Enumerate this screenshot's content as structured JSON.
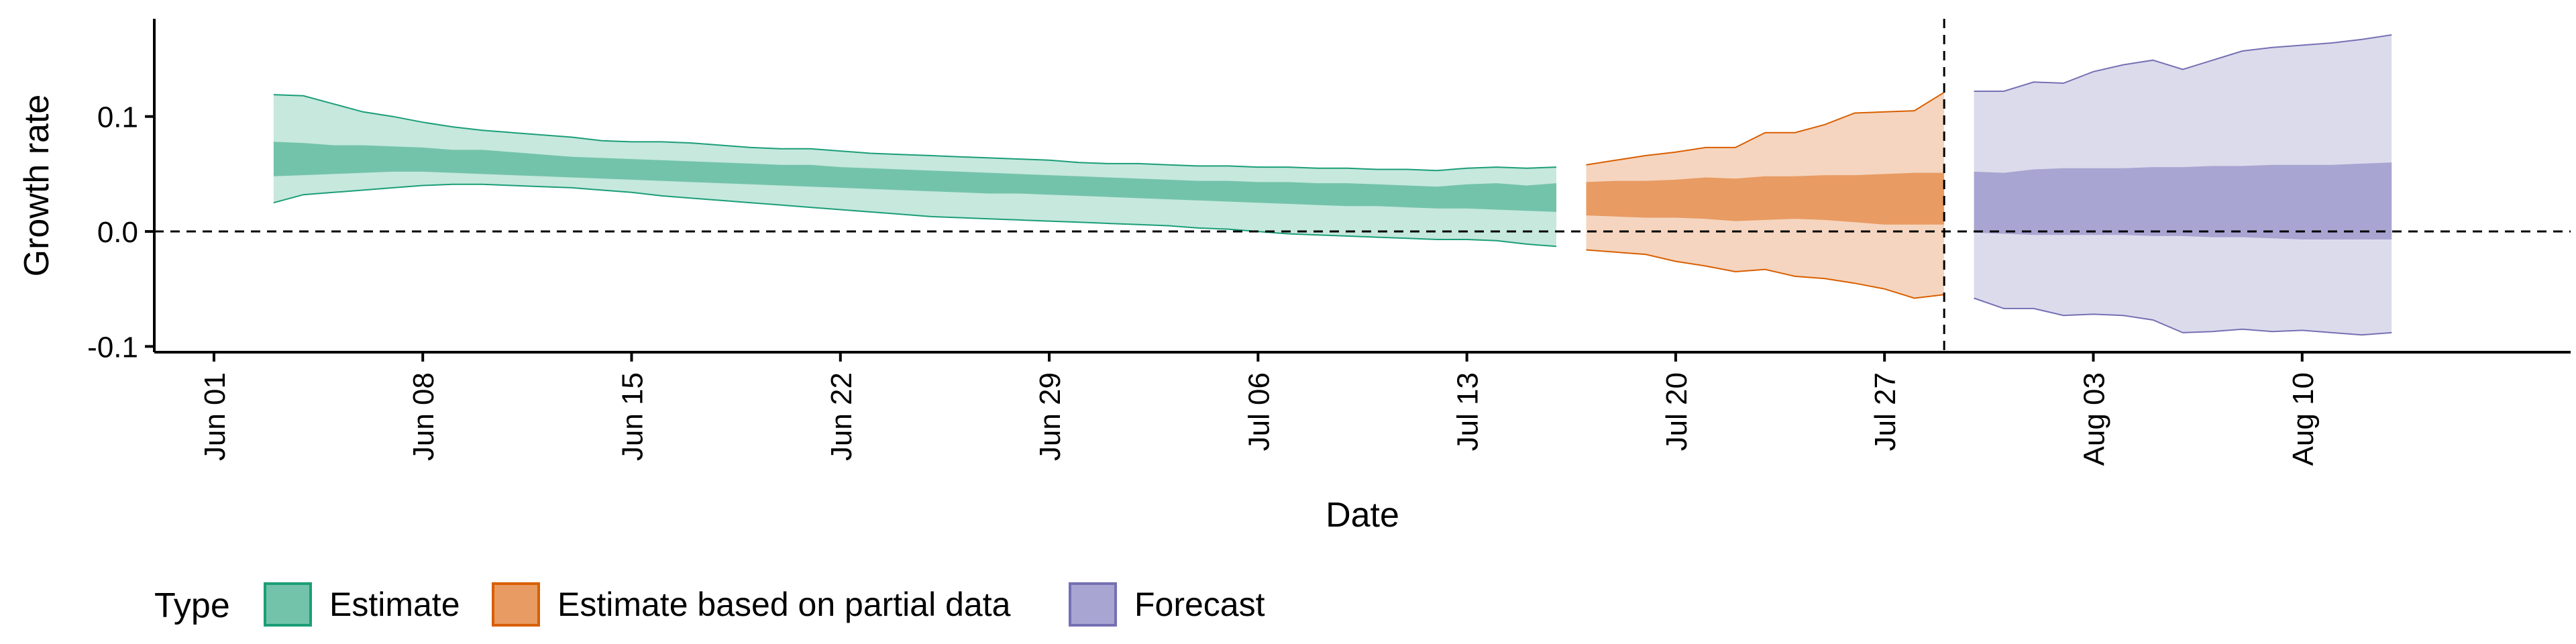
{
  "chart_data": {
    "type": "area",
    "xlabel": "Date",
    "ylabel": "Growth rate",
    "xlim": [
      "2020-05-30",
      "2020-08-19"
    ],
    "ylim": [
      -0.105,
      0.185
    ],
    "x_ticks": [
      {
        "date": "2020-06-01",
        "label": "Jun 01"
      },
      {
        "date": "2020-06-08",
        "label": "Jun 08"
      },
      {
        "date": "2020-06-15",
        "label": "Jun 15"
      },
      {
        "date": "2020-06-22",
        "label": "Jun 22"
      },
      {
        "date": "2020-06-29",
        "label": "Jun 29"
      },
      {
        "date": "2020-07-06",
        "label": "Jul 06"
      },
      {
        "date": "2020-07-13",
        "label": "Jul 13"
      },
      {
        "date": "2020-07-20",
        "label": "Jul 20"
      },
      {
        "date": "2020-07-27",
        "label": "Jul 27"
      },
      {
        "date": "2020-08-03",
        "label": "Aug 03"
      },
      {
        "date": "2020-08-10",
        "label": "Aug 10"
      }
    ],
    "y_ticks": [
      {
        "value": -0.1,
        "label": "-0.1"
      },
      {
        "value": 0.0,
        "label": "0.0"
      },
      {
        "value": 0.1,
        "label": "0.1"
      }
    ],
    "reference_lines": {
      "hline_y": 0.0,
      "vline_x": "2020-07-29"
    },
    "grid": false,
    "legend": {
      "title": "Type",
      "position": "bottom-left",
      "entries": [
        {
          "label": "Estimate",
          "color": "#1b9e77"
        },
        {
          "label": "Estimate based on partial data",
          "color": "#d95f02"
        },
        {
          "label": "Forecast",
          "color": "#7570b3"
        }
      ]
    },
    "series": [
      {
        "name": "Estimate",
        "color": "#1b9e77",
        "outer_fill": "#c6e8dd",
        "inner_fill": "#73c3aa",
        "x": [
          "2020-06-03",
          "2020-06-04",
          "2020-06-05",
          "2020-06-06",
          "2020-06-07",
          "2020-06-08",
          "2020-06-09",
          "2020-06-10",
          "2020-06-11",
          "2020-06-12",
          "2020-06-13",
          "2020-06-14",
          "2020-06-15",
          "2020-06-16",
          "2020-06-17",
          "2020-06-18",
          "2020-06-19",
          "2020-06-20",
          "2020-06-21",
          "2020-06-22",
          "2020-06-23",
          "2020-06-24",
          "2020-06-25",
          "2020-06-26",
          "2020-06-27",
          "2020-06-28",
          "2020-06-29",
          "2020-06-30",
          "2020-07-01",
          "2020-07-02",
          "2020-07-03",
          "2020-07-04",
          "2020-07-05",
          "2020-07-06",
          "2020-07-07",
          "2020-07-08",
          "2020-07-09",
          "2020-07-10",
          "2020-07-11",
          "2020-07-12",
          "2020-07-13",
          "2020-07-14",
          "2020-07-15",
          "2020-07-16"
        ],
        "outer_upper": [
          0.119,
          0.118,
          0.111,
          0.104,
          0.1,
          0.095,
          0.091,
          0.088,
          0.086,
          0.084,
          0.082,
          0.079,
          0.078,
          0.078,
          0.077,
          0.075,
          0.073,
          0.072,
          0.072,
          0.07,
          0.068,
          0.067,
          0.066,
          0.065,
          0.064,
          0.063,
          0.062,
          0.06,
          0.059,
          0.059,
          0.058,
          0.057,
          0.057,
          0.056,
          0.056,
          0.055,
          0.055,
          0.054,
          0.054,
          0.053,
          0.055,
          0.056,
          0.055,
          0.056
        ],
        "inner_upper": [
          0.078,
          0.077,
          0.075,
          0.075,
          0.074,
          0.073,
          0.071,
          0.071,
          0.069,
          0.067,
          0.065,
          0.064,
          0.063,
          0.062,
          0.061,
          0.06,
          0.059,
          0.058,
          0.058,
          0.056,
          0.055,
          0.054,
          0.053,
          0.052,
          0.051,
          0.05,
          0.049,
          0.048,
          0.047,
          0.046,
          0.045,
          0.044,
          0.044,
          0.043,
          0.043,
          0.042,
          0.042,
          0.041,
          0.04,
          0.039,
          0.041,
          0.042,
          0.04,
          0.042
        ],
        "inner_lower": [
          0.048,
          0.049,
          0.05,
          0.051,
          0.052,
          0.052,
          0.051,
          0.05,
          0.049,
          0.048,
          0.047,
          0.046,
          0.045,
          0.044,
          0.043,
          0.042,
          0.041,
          0.04,
          0.039,
          0.038,
          0.037,
          0.036,
          0.035,
          0.034,
          0.033,
          0.033,
          0.032,
          0.031,
          0.03,
          0.029,
          0.028,
          0.027,
          0.026,
          0.025,
          0.024,
          0.023,
          0.022,
          0.022,
          0.021,
          0.02,
          0.02,
          0.019,
          0.018,
          0.017
        ],
        "outer_lower": [
          0.025,
          0.032,
          0.034,
          0.036,
          0.038,
          0.04,
          0.041,
          0.041,
          0.04,
          0.039,
          0.038,
          0.036,
          0.034,
          0.031,
          0.029,
          0.027,
          0.025,
          0.023,
          0.021,
          0.019,
          0.017,
          0.015,
          0.013,
          0.012,
          0.011,
          0.01,
          0.009,
          0.008,
          0.007,
          0.006,
          0.005,
          0.003,
          0.002,
          0.0,
          -0.002,
          -0.003,
          -0.004,
          -0.005,
          -0.006,
          -0.007,
          -0.007,
          -0.008,
          -0.011,
          -0.013
        ]
      },
      {
        "name": "Estimate based on partial data",
        "color": "#d95f02",
        "outer_fill": "#f5d5bf",
        "inner_fill": "#e89b63",
        "x": [
          "2020-07-17",
          "2020-07-18",
          "2020-07-19",
          "2020-07-20",
          "2020-07-21",
          "2020-07-22",
          "2020-07-23",
          "2020-07-24",
          "2020-07-25",
          "2020-07-26",
          "2020-07-27",
          "2020-07-28",
          "2020-07-29"
        ],
        "outer_upper": [
          0.058,
          0.062,
          0.066,
          0.069,
          0.073,
          0.073,
          0.086,
          0.086,
          0.093,
          0.103,
          0.104,
          0.105,
          0.121
        ],
        "inner_upper": [
          0.043,
          0.044,
          0.044,
          0.045,
          0.047,
          0.046,
          0.048,
          0.048,
          0.049,
          0.049,
          0.05,
          0.051,
          0.051
        ],
        "inner_lower": [
          0.014,
          0.013,
          0.012,
          0.012,
          0.011,
          0.009,
          0.01,
          0.011,
          0.01,
          0.008,
          0.006,
          0.006,
          0.006
        ],
        "outer_lower": [
          -0.016,
          -0.018,
          -0.02,
          -0.026,
          -0.03,
          -0.035,
          -0.033,
          -0.039,
          -0.041,
          -0.045,
          -0.05,
          -0.058,
          -0.055
        ]
      },
      {
        "name": "Forecast",
        "color": "#7570b3",
        "outer_fill": "#dcdbec",
        "inner_fill": "#a9a5d2",
        "x": [
          "2020-07-30",
          "2020-07-31",
          "2020-08-01",
          "2020-08-02",
          "2020-08-03",
          "2020-08-04",
          "2020-08-05",
          "2020-08-06",
          "2020-08-07",
          "2020-08-08",
          "2020-08-09",
          "2020-08-10",
          "2020-08-11",
          "2020-08-12",
          "2020-08-13"
        ],
        "outer_upper": [
          0.122,
          0.122,
          0.13,
          0.129,
          0.139,
          0.145,
          0.149,
          0.141,
          0.149,
          0.157,
          0.16,
          0.162,
          0.164,
          0.167,
          0.171
        ],
        "inner_upper": [
          0.052,
          0.051,
          0.054,
          0.055,
          0.055,
          0.055,
          0.056,
          0.056,
          0.057,
          0.057,
          0.058,
          0.058,
          0.058,
          0.059,
          0.06
        ],
        "inner_lower": [
          -0.001,
          -0.002,
          -0.003,
          -0.003,
          -0.003,
          -0.003,
          -0.004,
          -0.004,
          -0.005,
          -0.005,
          -0.006,
          -0.007,
          -0.007,
          -0.007,
          -0.007
        ],
        "outer_lower": [
          -0.058,
          -0.067,
          -0.067,
          -0.073,
          -0.072,
          -0.073,
          -0.077,
          -0.088,
          -0.087,
          -0.085,
          -0.087,
          -0.086,
          -0.088,
          -0.09,
          -0.088
        ]
      }
    ]
  }
}
